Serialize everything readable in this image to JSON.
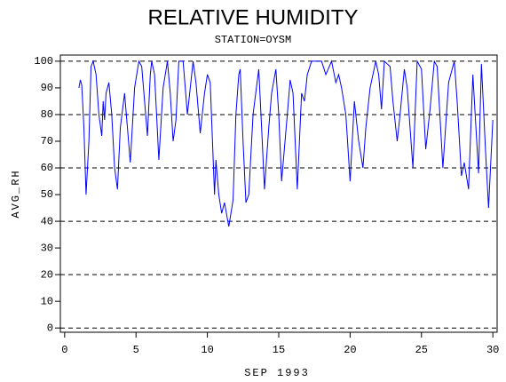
{
  "chart_data": {
    "type": "line",
    "title": "RELATIVE HUMIDITY",
    "subtitle": "STATION=OYSM",
    "x_label": "SEP 1993",
    "y_label": "AVG_RH",
    "xlim": [
      -0.3,
      30.3
    ],
    "xticks": [
      0,
      5,
      10,
      15,
      20,
      25,
      30
    ],
    "ylim": [
      -1.6,
      102.3
    ],
    "yticks": [
      0,
      10,
      20,
      30,
      40,
      50,
      60,
      70,
      80,
      90,
      100
    ],
    "grid_lines": [
      0,
      20,
      40,
      60,
      80,
      100
    ],
    "series": [
      {
        "name": "AVG_RH",
        "color": "#0000ff",
        "x": [
          1.0,
          1.1,
          1.2,
          1.35,
          1.5,
          1.7,
          1.85,
          2.0,
          2.2,
          2.4,
          2.6,
          2.7,
          2.8,
          2.9,
          3.1,
          3.3,
          3.5,
          3.7,
          3.9,
          4.2,
          4.4,
          4.6,
          4.9,
          5.2,
          5.4,
          5.6,
          5.8,
          6.0,
          6.1,
          6.3,
          6.6,
          6.9,
          7.2,
          7.4,
          7.6,
          7.8,
          8.0,
          8.3,
          8.6,
          9.0,
          9.2,
          9.5,
          9.8,
          10.0,
          10.2,
          10.5,
          10.6,
          10.8,
          11.0,
          11.2,
          11.5,
          11.8,
          12.0,
          12.2,
          12.3,
          12.5,
          12.7,
          12.9,
          13.2,
          13.6,
          13.8,
          14.0,
          14.3,
          14.5,
          14.8,
          15.0,
          15.2,
          15.6,
          15.8,
          16.0,
          16.3,
          16.6,
          16.8,
          17.0,
          17.3,
          17.6,
          18.0,
          18.3,
          18.7,
          19.0,
          19.2,
          19.4,
          19.7,
          20.0,
          20.3,
          20.6,
          20.9,
          21.1,
          21.4,
          21.8,
          22.0,
          22.2,
          22.4,
          22.8,
          23.0,
          23.3,
          23.5,
          23.8,
          24.0,
          24.4,
          24.7,
          25.0,
          25.3,
          25.6,
          25.9,
          26.1,
          26.5,
          26.9,
          27.3,
          27.5,
          27.8,
          28.0,
          28.3,
          28.6,
          29.0,
          29.2,
          29.5,
          29.7,
          30.0
        ],
        "values": [
          90,
          93,
          91,
          75,
          50,
          70,
          98,
          100,
          95,
          80,
          72,
          85,
          78,
          88,
          92,
          80,
          60,
          52,
          75,
          88,
          75,
          62,
          90,
          100,
          98,
          85,
          72,
          95,
          100,
          95,
          63,
          90,
          100,
          88,
          70,
          78,
          100,
          100,
          80,
          100,
          92,
          73,
          88,
          95,
          92,
          50,
          63,
          50,
          43,
          47,
          38,
          48,
          80,
          95,
          97,
          70,
          47,
          50,
          80,
          97,
          75,
          52,
          75,
          88,
          97,
          80,
          55,
          80,
          93,
          88,
          52,
          88,
          85,
          95,
          100,
          100,
          100,
          95,
          100,
          92,
          95,
          90,
          80,
          55,
          85,
          70,
          60,
          75,
          90,
          100,
          95,
          82,
          100,
          98,
          85,
          70,
          80,
          97,
          90,
          60,
          100,
          97,
          67,
          82,
          100,
          98,
          60,
          92,
          100,
          85,
          57,
          62,
          52,
          95,
          58,
          99,
          65,
          45,
          78
        ]
      }
    ]
  }
}
